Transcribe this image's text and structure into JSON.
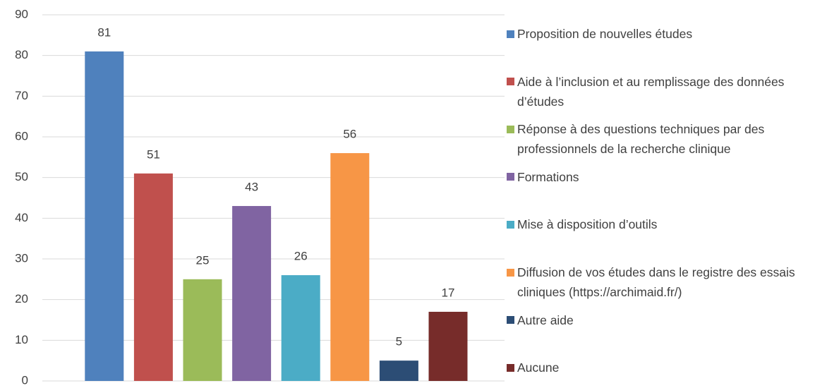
{
  "chart_data": {
    "type": "bar",
    "categories": [
      "Proposition de nouvelles études",
      "Aide à l’inclusion et au remplissage des données d’études",
      "Réponse à des questions techniques par des professionnels de la recherche clinique",
      "Formations",
      "Mise à disposition d’outils",
      "Diffusion de vos études dans le registre des essais cliniques (https://archimaid.fr/)",
      "Autre aide",
      "Aucune"
    ],
    "values": [
      81,
      51,
      25,
      43,
      26,
      56,
      5,
      17
    ],
    "colors": [
      "#4f81bd",
      "#c0504d",
      "#9bbb59",
      "#8064a2",
      "#4bacc6",
      "#f79646",
      "#2c4d75",
      "#772c2a"
    ],
    "ylim": [
      0,
      90
    ],
    "yticks": [
      0,
      10,
      20,
      30,
      40,
      50,
      60,
      70,
      80,
      90
    ],
    "grid": true,
    "legend": "right"
  }
}
